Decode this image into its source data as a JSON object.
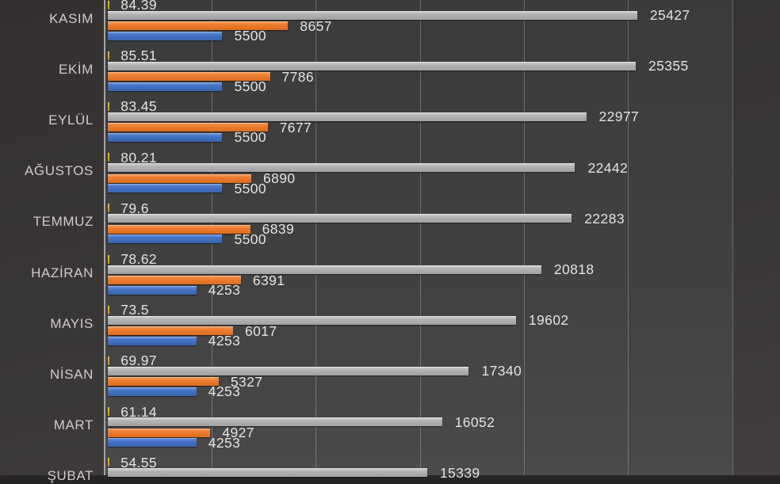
{
  "chart_data": {
    "type": "bar",
    "orientation": "horizontal",
    "categories": [
      "KASIM",
      "EKİM",
      "EYLÜL",
      "AĞUSTOS",
      "TEMMUZ",
      "HAZİRAN",
      "MAYIS",
      "NİSAN",
      "MART",
      "ŞUBAT"
    ],
    "series": [
      {
        "id": "yellow",
        "color": "#E0A414",
        "values": [
          84.39,
          85.51,
          83.45,
          80.21,
          79.6,
          78.62,
          73.5,
          69.97,
          61.14,
          54.55
        ]
      },
      {
        "id": "gray",
        "color": "#ABABAB",
        "values": [
          25427,
          25355,
          22977,
          22442,
          22283,
          20818,
          19602,
          17340,
          16052,
          15339
        ]
      },
      {
        "id": "orange",
        "color": "#ED7D31",
        "values": [
          8657,
          7786,
          7677,
          6890,
          6839,
          6391,
          6017,
          5327,
          4927,
          null
        ]
      },
      {
        "id": "blue",
        "color": "#4472C4",
        "values": [
          5500,
          5500,
          5500,
          5500,
          5500,
          4253,
          4253,
          4253,
          4253,
          null
        ]
      }
    ],
    "data_labels": true,
    "legend": {
      "visible": false
    },
    "x_axis": {
      "min": 0,
      "gridline_interval": 5000,
      "last_visible_gridline": 30000,
      "tick_labels_visible": false
    },
    "grid": true,
    "colors": {
      "chart_background": "#3a3737",
      "plot_background": "#414141",
      "gridline": "#8a8a8a",
      "axis_line": "#A6A3A3",
      "value_label_text": "#E4E4E4",
      "category_label_text": "#D0CCCC"
    },
    "partially_visible_category": "ŞUBAT"
  }
}
